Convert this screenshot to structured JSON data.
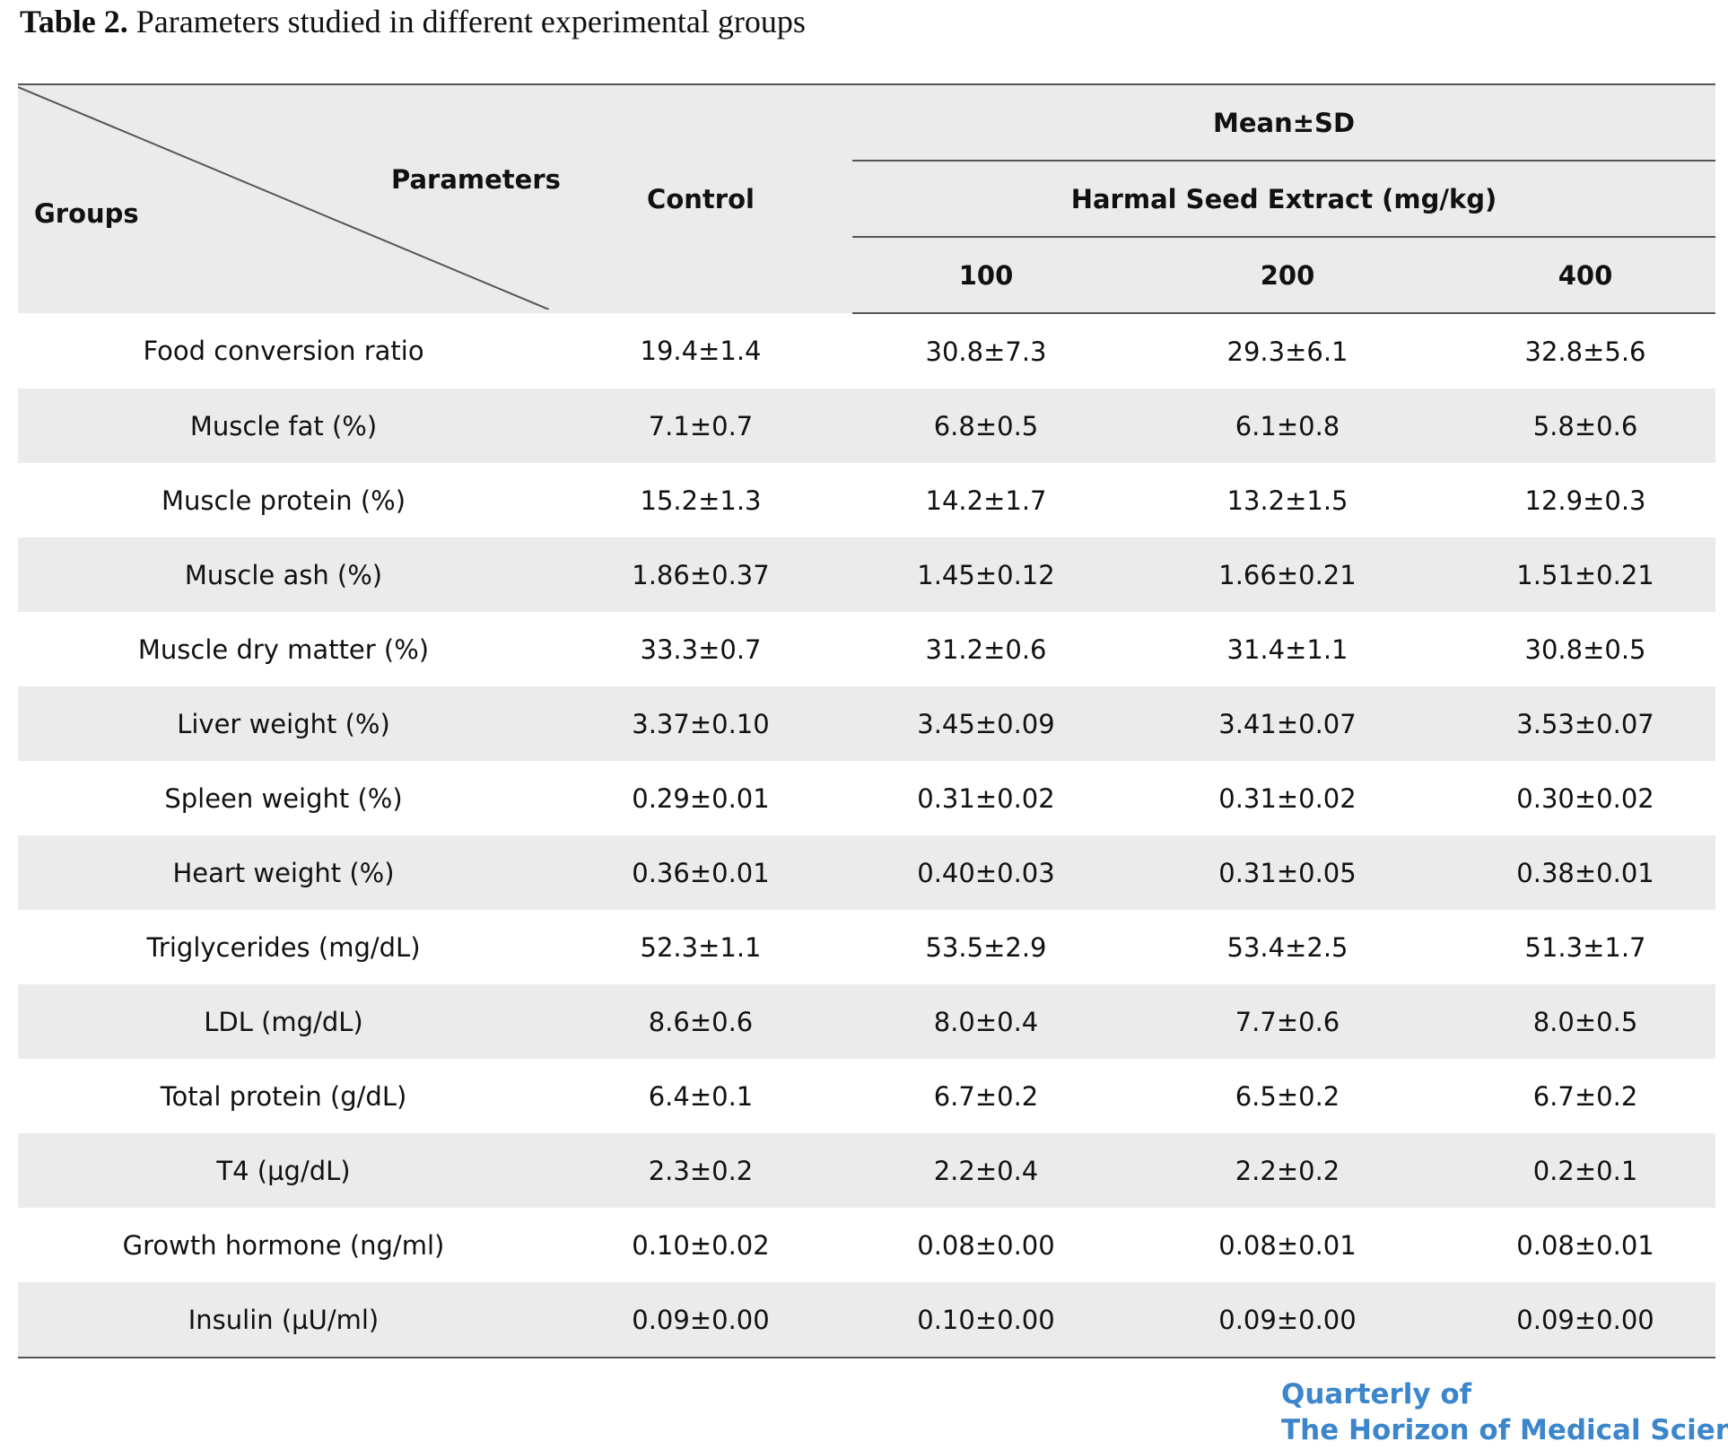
{
  "caption": {
    "label": "Table 2.",
    "text": "Parameters studied in different experimental groups"
  },
  "table": {
    "header": {
      "groups_label": "Groups",
      "parameters_label": "Parameters",
      "control_label": "Control",
      "mean_sd_label": "Mean±SD",
      "extract_label": "Harmal Seed Extract (mg/kg)",
      "doses": [
        "100",
        "200",
        "400"
      ]
    },
    "rows": [
      {
        "parameter": "Food conversion ratio",
        "values": [
          "19.4±1.4",
          "30.8±7.3",
          "29.3±6.1",
          "32.8±5.6"
        ]
      },
      {
        "parameter": "Muscle fat (%)",
        "values": [
          "7.1±0.7",
          "6.8±0.5",
          "6.1±0.8",
          "5.8±0.6"
        ]
      },
      {
        "parameter": "Muscle protein (%)",
        "values": [
          "15.2±1.3",
          "14.2±1.7",
          "13.2±1.5",
          "12.9±0.3"
        ]
      },
      {
        "parameter": "Muscle ash (%)",
        "values": [
          "1.86±0.37",
          "1.45±0.12",
          "1.66±0.21",
          "1.51±0.21"
        ]
      },
      {
        "parameter": "Muscle dry matter (%)",
        "values": [
          "33.3±0.7",
          "31.2±0.6",
          "31.4±1.1",
          "30.8±0.5"
        ]
      },
      {
        "parameter": "Liver weight (%)",
        "values": [
          "3.37±0.10",
          "3.45±0.09",
          "3.41±0.07",
          "3.53±0.07"
        ]
      },
      {
        "parameter": "Spleen weight (%)",
        "values": [
          "0.29±0.01",
          "0.31±0.02",
          "0.31±0.02",
          "0.30±0.02"
        ]
      },
      {
        "parameter": "Heart weight (%)",
        "values": [
          "0.36±0.01",
          "0.40±0.03",
          "0.31±0.05",
          "0.38±0.01"
        ]
      },
      {
        "parameter": "Triglycerides (mg/dL)",
        "values": [
          "52.3±1.1",
          "53.5±2.9",
          "53.4±2.5",
          "51.3±1.7"
        ]
      },
      {
        "parameter": "LDL (mg/dL)",
        "values": [
          "8.6±0.6",
          "8.0±0.4",
          "7.7±0.6",
          "8.0±0.5"
        ]
      },
      {
        "parameter": "Total protein (g/dL)",
        "values": [
          "6.4±0.1",
          "6.7±0.2",
          "6.5±0.2",
          "6.7±0.2"
        ]
      },
      {
        "parameter": "T4 (µg/dL)",
        "values": [
          "2.3±0.2",
          "2.2±0.4",
          "2.2±0.2",
          "0.2±0.1"
        ]
      },
      {
        "parameter": "Growth hormone (ng/ml)",
        "values": [
          "0.10±0.02",
          "0.08±0.00",
          "0.08±0.01",
          "0.08±0.01"
        ]
      },
      {
        "parameter": "Insulin (µU/ml)",
        "values": [
          "0.09±0.00",
          "0.10±0.00",
          "0.09±0.00",
          "0.09±0.00"
        ]
      }
    ]
  },
  "footer": {
    "logo_line1": "Quarterly of",
    "logo_line2": "The Horizon of Medical Sciences"
  },
  "colors": {
    "stripe": "#ebebeb",
    "rule": "#555555",
    "logo": "#3c86cc"
  }
}
